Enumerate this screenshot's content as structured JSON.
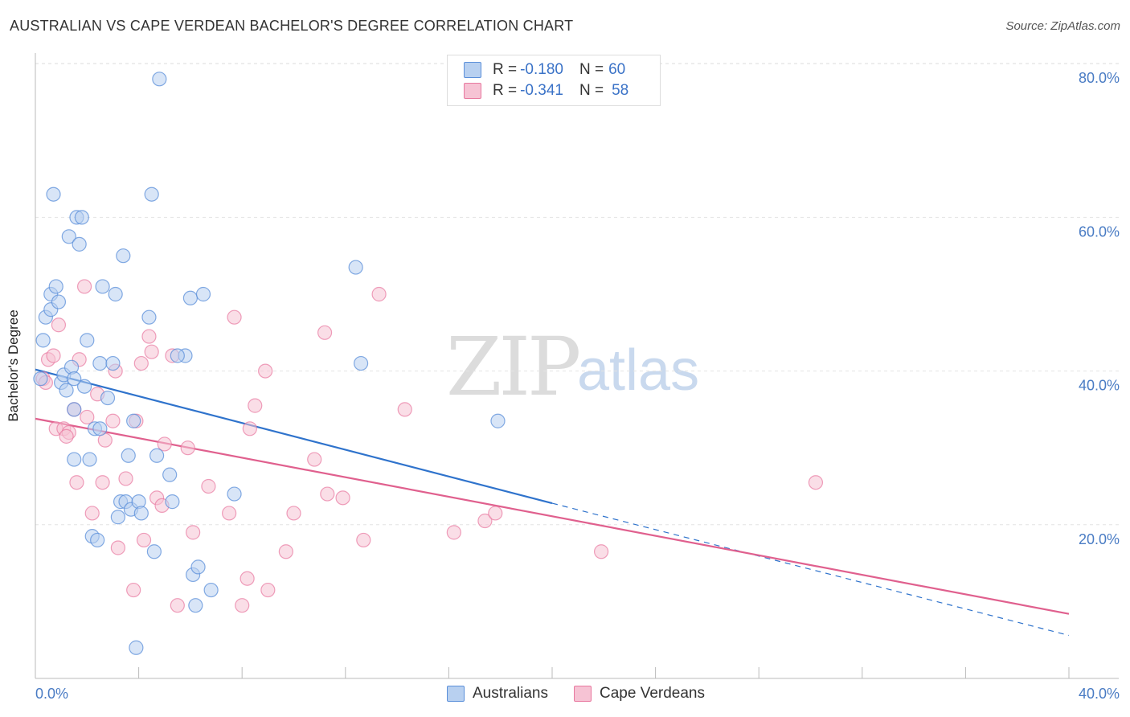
{
  "header": {
    "title": "AUSTRALIAN VS CAPE VERDEAN BACHELOR'S DEGREE CORRELATION CHART",
    "source": "Source: ZipAtlas.com"
  },
  "watermark": {
    "zip": "ZIP",
    "atlas": "atlas"
  },
  "legend": {
    "row1": {
      "r_label": "R = ",
      "r_value": "-0.180",
      "n_label": "N = ",
      "n_value": "60"
    },
    "row2": {
      "r_label": "R = ",
      "r_value": "-0.341",
      "n_label": "N = ",
      "n_value": "58"
    }
  },
  "colors": {
    "blue": "#5b8fd9",
    "blue_fill": "#b8d0f0",
    "blue_line": "#2f73cc",
    "pink": "#e8789f",
    "pink_fill": "#f6c3d4",
    "pink_line": "#e0608e"
  },
  "chart_data": {
    "type": "scatter",
    "title": "AUSTRALIAN VS CAPE VERDEAN BACHELOR'S DEGREE CORRELATION CHART",
    "xlabel": "",
    "ylabel": "Bachelor's Degree",
    "xlim": [
      0,
      40
    ],
    "ylim": [
      0,
      80
    ],
    "x_ticks": [
      "0.0%",
      "40.0%"
    ],
    "y_ticks": [
      "20.0%",
      "40.0%",
      "60.0%",
      "80.0%"
    ],
    "y_tick_values": [
      20,
      40,
      60,
      80
    ],
    "legend_position": "top-center",
    "series": [
      {
        "name": "Australians",
        "R": -0.18,
        "N": 60,
        "trend": {
          "x": [
            0,
            20
          ],
          "y": [
            40.2,
            22.8
          ]
        },
        "trend_dashed": {
          "x": [
            20,
            40
          ],
          "y": [
            22.8,
            5.6
          ]
        },
        "points": [
          [
            0.2,
            39.0
          ],
          [
            0.4,
            47.0
          ],
          [
            0.6,
            50.0
          ],
          [
            0.6,
            48.0
          ],
          [
            0.8,
            51.0
          ],
          [
            0.7,
            63.0
          ],
          [
            0.9,
            49.0
          ],
          [
            1.0,
            38.5
          ],
          [
            1.1,
            39.5
          ],
          [
            1.2,
            37.5
          ],
          [
            1.3,
            57.5
          ],
          [
            1.4,
            40.5
          ],
          [
            1.5,
            28.5
          ],
          [
            1.6,
            60.0
          ],
          [
            1.7,
            56.5
          ],
          [
            1.8,
            60.0
          ],
          [
            1.9,
            38.0
          ],
          [
            2.0,
            44.0
          ],
          [
            2.1,
            28.5
          ],
          [
            2.2,
            18.5
          ],
          [
            2.3,
            32.5
          ],
          [
            2.4,
            18.0
          ],
          [
            2.5,
            41.0
          ],
          [
            2.6,
            51.0
          ],
          [
            2.8,
            36.5
          ],
          [
            3.0,
            41.0
          ],
          [
            3.1,
            50.0
          ],
          [
            3.2,
            21.0
          ],
          [
            3.3,
            23.0
          ],
          [
            3.4,
            55.0
          ],
          [
            3.5,
            23.0
          ],
          [
            3.6,
            29.0
          ],
          [
            3.7,
            22.0
          ],
          [
            3.8,
            33.5
          ],
          [
            3.9,
            4.0
          ],
          [
            4.0,
            23.0
          ],
          [
            4.1,
            21.5
          ],
          [
            4.4,
            47.0
          ],
          [
            4.5,
            63.0
          ],
          [
            4.6,
            16.5
          ],
          [
            4.7,
            29.0
          ],
          [
            4.8,
            78.0
          ],
          [
            5.2,
            26.5
          ],
          [
            5.3,
            23.0
          ],
          [
            5.8,
            42.0
          ],
          [
            6.0,
            49.5
          ],
          [
            6.1,
            13.5
          ],
          [
            6.2,
            9.5
          ],
          [
            6.3,
            14.5
          ],
          [
            6.5,
            50.0
          ],
          [
            6.8,
            11.5
          ],
          [
            7.7,
            24.0
          ],
          [
            1.5,
            39.0
          ],
          [
            0.3,
            44.0
          ],
          [
            1.5,
            35.0
          ],
          [
            2.5,
            32.5
          ],
          [
            12.4,
            53.5
          ],
          [
            12.6,
            41.0
          ],
          [
            17.9,
            33.5
          ],
          [
            5.5,
            42.0
          ]
        ]
      },
      {
        "name": "Cape Verdeans",
        "R": -0.341,
        "N": 58,
        "trend": {
          "x": [
            0,
            40
          ],
          "y": [
            33.8,
            8.4
          ]
        },
        "points": [
          [
            0.3,
            39.0
          ],
          [
            0.5,
            41.5
          ],
          [
            0.7,
            42.0
          ],
          [
            0.8,
            32.5
          ],
          [
            0.9,
            46.0
          ],
          [
            1.1,
            32.5
          ],
          [
            1.3,
            32.0
          ],
          [
            1.5,
            35.0
          ],
          [
            1.6,
            25.5
          ],
          [
            1.7,
            41.5
          ],
          [
            1.9,
            51.0
          ],
          [
            2.0,
            34.0
          ],
          [
            2.2,
            21.5
          ],
          [
            2.4,
            37.0
          ],
          [
            2.6,
            25.5
          ],
          [
            2.7,
            31.0
          ],
          [
            3.0,
            33.5
          ],
          [
            3.1,
            40.0
          ],
          [
            3.2,
            17.0
          ],
          [
            3.5,
            26.0
          ],
          [
            3.8,
            11.5
          ],
          [
            3.9,
            33.5
          ],
          [
            4.1,
            41.0
          ],
          [
            4.2,
            18.0
          ],
          [
            4.4,
            44.5
          ],
          [
            4.5,
            42.5
          ],
          [
            4.7,
            23.5
          ],
          [
            4.9,
            22.5
          ],
          [
            5.0,
            30.5
          ],
          [
            5.3,
            42.0
          ],
          [
            5.5,
            9.5
          ],
          [
            5.9,
            30.0
          ],
          [
            6.1,
            19.0
          ],
          [
            6.7,
            25.0
          ],
          [
            7.5,
            21.5
          ],
          [
            7.7,
            47.0
          ],
          [
            8.0,
            9.5
          ],
          [
            8.2,
            13.0
          ],
          [
            8.3,
            32.5
          ],
          [
            8.5,
            35.5
          ],
          [
            8.9,
            40.0
          ],
          [
            9.0,
            11.5
          ],
          [
            9.7,
            16.5
          ],
          [
            10.0,
            21.5
          ],
          [
            10.8,
            28.5
          ],
          [
            11.2,
            45.0
          ],
          [
            11.3,
            24.0
          ],
          [
            11.9,
            23.5
          ],
          [
            12.7,
            18.0
          ],
          [
            13.3,
            50.0
          ],
          [
            14.3,
            35.0
          ],
          [
            16.2,
            19.0
          ],
          [
            17.4,
            20.5
          ],
          [
            17.8,
            21.5
          ],
          [
            21.9,
            16.5
          ],
          [
            30.2,
            25.5
          ],
          [
            0.4,
            38.5
          ],
          [
            1.2,
            31.5
          ]
        ]
      }
    ]
  },
  "bottom_legend": {
    "item1": "Australians",
    "item2": "Cape Verdeans"
  }
}
